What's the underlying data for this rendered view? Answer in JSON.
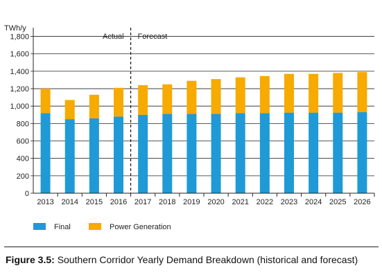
{
  "caption": {
    "label": "Figure 3.5:",
    "text": "Southern Corridor Yearly Demand Breakdown (historical and forecast)"
  },
  "chart_data": {
    "type": "bar",
    "stacked": true,
    "y_unit_label": "TWh/y",
    "categories": [
      "2013",
      "2014",
      "2015",
      "2016",
      "2017",
      "2018",
      "2019",
      "2020",
      "2021",
      "2022",
      "2023",
      "2024",
      "2025",
      "2026"
    ],
    "series": [
      {
        "name": "Final",
        "color": "#1f9ad6",
        "values": [
          920,
          850,
          860,
          880,
          900,
          910,
          910,
          910,
          920,
          920,
          925,
          925,
          925,
          930
        ]
      },
      {
        "name": "Power Generation",
        "color": "#f7aa00",
        "values": [
          280,
          220,
          270,
          330,
          340,
          340,
          380,
          400,
          410,
          425,
          445,
          445,
          455,
          460
        ]
      }
    ],
    "ylim": [
      0,
      1900
    ],
    "yticks": [
      0,
      200,
      400,
      600,
      800,
      1000,
      1200,
      1400,
      1600,
      1800
    ],
    "ytick_labels": [
      "0",
      "200",
      "400",
      "600",
      "800",
      "1,000",
      "1,200",
      "1,400",
      "1,600",
      "1,800"
    ],
    "grid": true,
    "legend_position": "bottom-left",
    "divider": {
      "after_category": "2016",
      "left_label": "Actual",
      "right_label": "Forecast"
    }
  }
}
